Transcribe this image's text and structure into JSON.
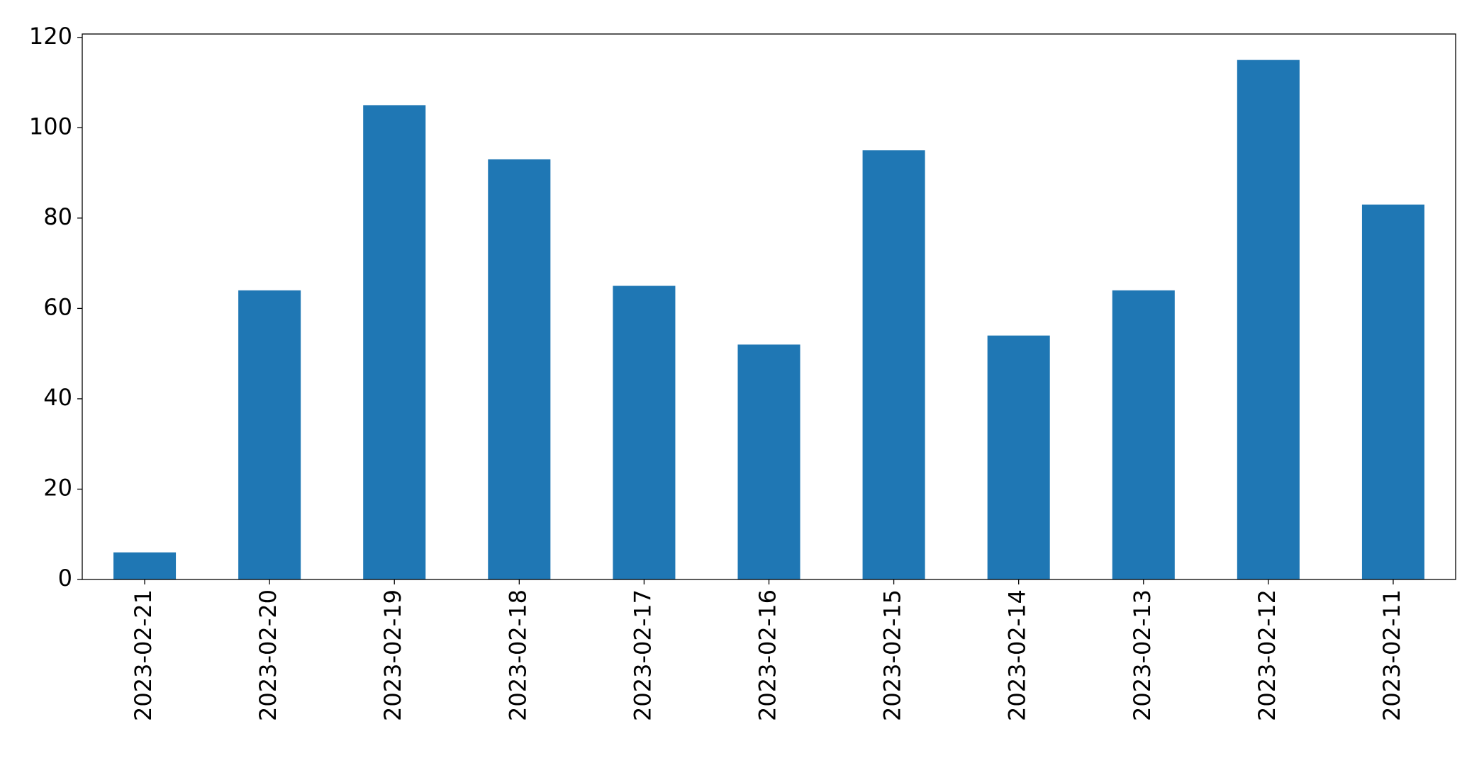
{
  "chart_data": {
    "type": "bar",
    "categories": [
      "2023-02-21",
      "2023-02-20",
      "2023-02-19",
      "2023-02-18",
      "2023-02-17",
      "2023-02-16",
      "2023-02-15",
      "2023-02-14",
      "2023-02-13",
      "2023-02-12",
      "2023-02-11"
    ],
    "values": [
      6,
      64,
      105,
      93,
      65,
      52,
      95,
      54,
      64,
      115,
      83
    ],
    "color": "#1f77b4",
    "ylim": [
      0,
      120.75
    ],
    "yticks": [
      0,
      20,
      40,
      60,
      80,
      100,
      120
    ],
    "grid": false
  }
}
